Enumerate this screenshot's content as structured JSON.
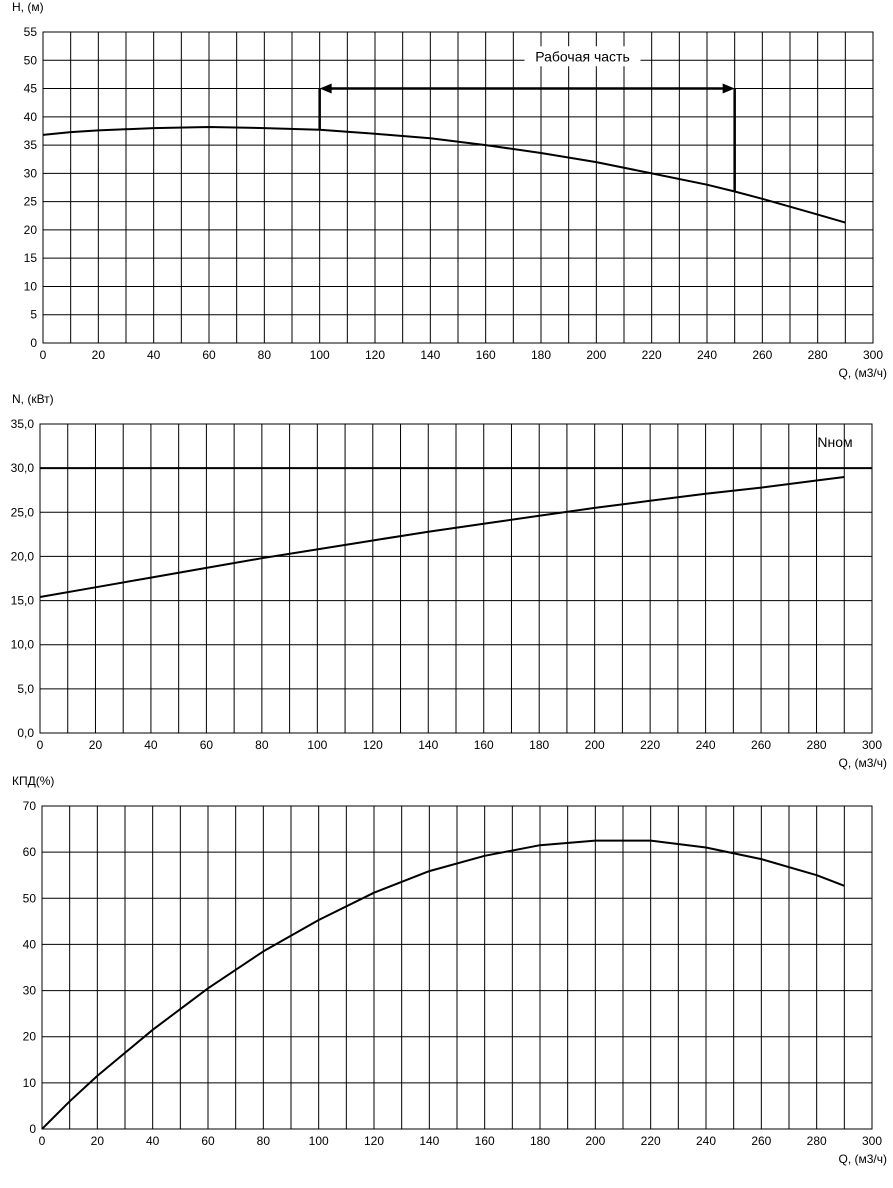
{
  "colors": {
    "background": "#ffffff",
    "grid": "#000000",
    "curve": "#000000"
  },
  "chart_data": [
    {
      "type": "line",
      "id": "head",
      "ylabel": "H, (м)",
      "xlabel": "Q, (м3/ч)",
      "xlim": [
        0,
        300
      ],
      "ylim": [
        0,
        55
      ],
      "x_major_step": 20,
      "x_grid_step": 10,
      "y_step": 5,
      "y_decimals": 0,
      "grid": true,
      "series": [
        {
          "x": [
            0,
            10,
            20,
            40,
            60,
            80,
            100,
            120,
            140,
            160,
            180,
            200,
            220,
            240,
            250,
            260,
            280,
            290
          ],
          "y": [
            36.8,
            37.3,
            37.6,
            38.0,
            38.2,
            38.0,
            37.7,
            37.0,
            36.2,
            35.0,
            33.6,
            32.0,
            30.0,
            28.0,
            26.8,
            25.5,
            22.7,
            21.3
          ]
        }
      ],
      "annotations": [
        {
          "text": "Рабочая часть",
          "x": 195,
          "y": 50
        }
      ],
      "working_range": {
        "x": [
          100,
          250
        ],
        "y": 45
      }
    },
    {
      "type": "line",
      "id": "power",
      "ylabel": "N, (кВт)",
      "xlabel": "Q, (м3/ч)",
      "xlim": [
        0,
        300
      ],
      "ylim": [
        0,
        35
      ],
      "x_major_step": 20,
      "x_grid_step": 10,
      "y_step": 5,
      "y_decimals": 1,
      "grid": true,
      "series": [
        {
          "x": [
            0,
            20,
            40,
            60,
            80,
            100,
            120,
            140,
            160,
            180,
            200,
            220,
            240,
            260,
            280,
            290
          ],
          "y": [
            15.4,
            16.5,
            17.6,
            18.7,
            19.8,
            20.8,
            21.8,
            22.8,
            23.7,
            24.6,
            25.5,
            26.3,
            27.1,
            27.8,
            28.6,
            29.0
          ]
        }
      ],
      "reference_line": {
        "y": 30.0,
        "label": "Nном"
      }
    },
    {
      "type": "line",
      "id": "efficiency",
      "ylabel": "КПД(%)",
      "xlabel": "Q, (м3/ч)",
      "xlim": [
        0,
        300
      ],
      "ylim": [
        0,
        70
      ],
      "x_major_step": 20,
      "x_grid_step": 10,
      "y_step": 10,
      "y_decimals": 0,
      "grid": true,
      "series": [
        {
          "x": [
            0,
            10,
            20,
            40,
            60,
            80,
            100,
            120,
            140,
            160,
            180,
            200,
            220,
            240,
            260,
            280,
            290
          ],
          "y": [
            0,
            6,
            11.5,
            21.5,
            30.5,
            38.5,
            45.3,
            51.2,
            55.9,
            59.2,
            61.5,
            62.5,
            62.5,
            61.0,
            58.5,
            55.0,
            52.7
          ]
        }
      ]
    }
  ]
}
